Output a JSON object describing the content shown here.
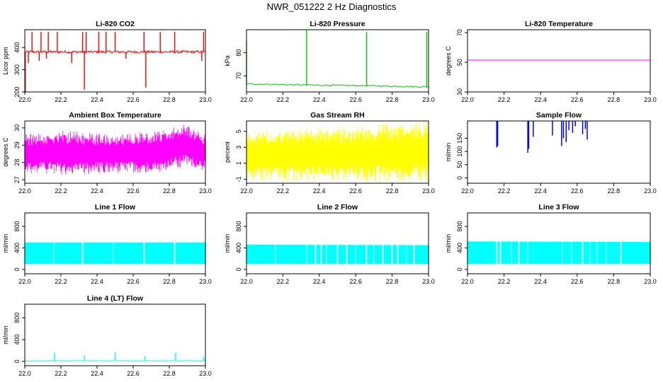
{
  "figure": {
    "title": "NWR_051222  2 Hz Diagnostics"
  },
  "chart_data": [
    {
      "type": "line",
      "title": "Li-820 CO2",
      "ylabel": "Licor ppm",
      "color": "#ff0000",
      "xlim": [
        22.0,
        23.0
      ],
      "ylim": [
        200,
        480
      ],
      "xticks": [
        22.0,
        22.2,
        22.4,
        22.6,
        22.8,
        23.0
      ],
      "yticks": [
        200,
        300,
        400
      ],
      "baseline": 380,
      "noise": 6,
      "spikes": [
        {
          "x": 22.04,
          "y": 470
        },
        {
          "x": 22.09,
          "y": 470
        },
        {
          "x": 22.13,
          "y": 470
        },
        {
          "x": 22.18,
          "y": 470
        },
        {
          "x": 22.32,
          "y": 470
        },
        {
          "x": 22.34,
          "y": 470
        },
        {
          "x": 22.41,
          "y": 470
        },
        {
          "x": 22.45,
          "y": 470
        },
        {
          "x": 22.5,
          "y": 470
        },
        {
          "x": 22.66,
          "y": 470
        },
        {
          "x": 22.75,
          "y": 470
        },
        {
          "x": 22.83,
          "y": 470
        },
        {
          "x": 22.99,
          "y": 470
        },
        {
          "x": 22.003,
          "y": 200
        },
        {
          "x": 22.33,
          "y": 210
        },
        {
          "x": 22.67,
          "y": 220
        },
        {
          "x": 22.02,
          "y": 330
        },
        {
          "x": 22.08,
          "y": 340
        },
        {
          "x": 22.26,
          "y": 330
        },
        {
          "x": 22.56,
          "y": 350
        },
        {
          "x": 22.98,
          "y": 340
        },
        {
          "x": 22.12,
          "y": 350
        }
      ]
    },
    {
      "type": "line",
      "title": "Li-820 Pressure",
      "ylabel": "kPa",
      "color": "#00cc00",
      "xlim": [
        22.0,
        23.0
      ],
      "ylim": [
        63,
        90
      ],
      "xticks": [
        22.0,
        22.2,
        22.4,
        22.6,
        22.8,
        23.0
      ],
      "yticks": [
        70,
        80
      ],
      "line": [
        [
          22.0,
          66.5
        ],
        [
          22.33,
          66.0
        ],
        [
          22.66,
          65.7
        ],
        [
          22.99,
          65.2
        ]
      ],
      "noise": 0.3,
      "spikes": [
        {
          "x": 22.0,
          "y": 85
        },
        {
          "x": 22.33,
          "y": 90
        },
        {
          "x": 22.66,
          "y": 89
        },
        {
          "x": 22.99,
          "y": 89
        }
      ]
    },
    {
      "type": "line",
      "title": "Li-820 Temperature",
      "ylabel": "degrees C",
      "color": "#ff00ff",
      "xlim": [
        22.0,
        23.0
      ],
      "ylim": [
        30,
        72
      ],
      "xticks": [
        22.0,
        22.2,
        22.4,
        22.6,
        22.8,
        23.0
      ],
      "yticks": [
        30,
        50,
        70
      ],
      "line": [
        [
          22.0,
          51.5
        ],
        [
          23.0,
          51.5
        ]
      ],
      "noise": 0
    },
    {
      "type": "line",
      "title": "Ambient Box Temperature",
      "ylabel": "degrees C",
      "color": "#ff00ff",
      "xlim": [
        22.0,
        23.0
      ],
      "ylim": [
        26.8,
        30.4
      ],
      "xticks": [
        22.0,
        22.2,
        22.4,
        22.6,
        22.8,
        23.0
      ],
      "yticks": [
        27.0,
        28.0,
        29.0,
        30.0
      ],
      "band": [
        [
          22.0,
          27.6,
          29.4
        ],
        [
          22.2,
          27.5,
          29.6
        ],
        [
          22.5,
          27.6,
          29.4
        ],
        [
          22.75,
          27.6,
          29.6
        ],
        [
          22.88,
          28.0,
          30.0
        ],
        [
          23.0,
          27.7,
          29.4
        ]
      ]
    },
    {
      "type": "line",
      "title": "Gas Stream RH",
      "ylabel": "percent",
      "color": "#ffff00",
      "xlim": [
        22.0,
        23.0
      ],
      "ylim": [
        -1.5,
        6.3
      ],
      "xticks": [
        22.0,
        22.2,
        22.4,
        22.6,
        22.8,
        23.0
      ],
      "yticks": [
        -1,
        1,
        3,
        5
      ],
      "band": [
        [
          22.0,
          -0.6,
          4.2
        ],
        [
          22.2,
          -0.7,
          4.8
        ],
        [
          22.5,
          -0.6,
          4.8
        ],
        [
          22.8,
          -0.8,
          5.4
        ],
        [
          23.0,
          -0.5,
          5.6
        ]
      ]
    },
    {
      "type": "line",
      "title": "Sample Flow",
      "ylabel": "ml/min",
      "color": "#0000ff",
      "xlim": [
        22.0,
        23.0
      ],
      "ylim": [
        -20,
        215
      ],
      "xticks": [
        22.0,
        22.2,
        22.4,
        22.6,
        22.8,
        23.0
      ],
      "yticks": [
        0,
        50,
        100,
        150
      ],
      "segments": [
        {
          "x": 22.16,
          "y1": 215,
          "y2": 115
        },
        {
          "x": 22.165,
          "y1": 215,
          "y2": 120
        },
        {
          "x": 22.33,
          "y1": 215,
          "y2": 95
        },
        {
          "x": 22.335,
          "y1": 215,
          "y2": 110
        },
        {
          "x": 22.36,
          "y1": 215,
          "y2": 155
        },
        {
          "x": 22.465,
          "y1": 215,
          "y2": 160
        },
        {
          "x": 22.515,
          "y1": 215,
          "y2": 120
        },
        {
          "x": 22.525,
          "y1": 215,
          "y2": 150
        },
        {
          "x": 22.54,
          "y1": 215,
          "y2": 135
        },
        {
          "x": 22.555,
          "y1": 215,
          "y2": 180
        },
        {
          "x": 22.575,
          "y1": 215,
          "y2": 170
        },
        {
          "x": 22.59,
          "y1": 215,
          "y2": 195
        },
        {
          "x": 22.63,
          "y1": 215,
          "y2": 165
        },
        {
          "x": 22.645,
          "y1": 215,
          "y2": 185
        },
        {
          "x": 22.655,
          "y1": 215,
          "y2": 145
        }
      ]
    },
    {
      "type": "line",
      "title": "Line 1 Flow",
      "ylabel": "ml/min",
      "color": "#00ffff",
      "xlim": [
        22.0,
        23.0
      ],
      "ylim": [
        -80,
        1050
      ],
      "xticks": [
        22.0,
        22.2,
        22.4,
        22.6,
        22.8,
        23.0
      ],
      "yticks": [
        0,
        400,
        800
      ],
      "band": [
        [
          22.0,
          100,
          500
        ],
        [
          23.0,
          100,
          500
        ]
      ],
      "gaps": [
        22.16,
        22.32,
        22.49,
        22.66,
        22.83
      ]
    },
    {
      "type": "line",
      "title": "Line 2 Flow",
      "ylabel": "ml/min",
      "color": "#00ffff",
      "xlim": [
        22.0,
        23.0
      ],
      "ylim": [
        -80,
        1050
      ],
      "xticks": [
        22.0,
        22.2,
        22.4,
        22.6,
        22.8,
        23.0
      ],
      "yticks": [
        0,
        400,
        800
      ],
      "band": [
        [
          22.0,
          100,
          460
        ],
        [
          23.0,
          100,
          450
        ]
      ],
      "gaps": [
        22.16,
        22.33,
        22.38,
        22.41,
        22.44,
        22.5,
        22.55,
        22.6,
        22.66,
        22.7,
        22.75,
        22.8,
        22.83,
        22.88,
        22.92
      ]
    },
    {
      "type": "line",
      "title": "Line 3 Flow",
      "ylabel": "ml/min",
      "color": "#00ffff",
      "xlim": [
        22.0,
        23.0
      ],
      "ylim": [
        -80,
        1050
      ],
      "xticks": [
        22.0,
        22.2,
        22.4,
        22.6,
        22.8,
        23.0
      ],
      "yticks": [
        0,
        400,
        800
      ],
      "band": [
        [
          22.0,
          100,
          520
        ],
        [
          23.0,
          100,
          510
        ]
      ],
      "gaps": [
        22.16,
        22.18,
        22.24,
        22.28,
        22.33,
        22.52,
        22.57,
        22.63,
        22.67,
        22.71,
        22.76,
        22.84
      ]
    },
    {
      "type": "line",
      "title": "Line 4 (LT) Flow",
      "ylabel": "ml/min",
      "color": "#00ffff",
      "xlim": [
        22.0,
        23.0
      ],
      "ylim": [
        -80,
        1050
      ],
      "xticks": [
        22.0,
        22.2,
        22.4,
        22.6,
        22.8,
        23.0
      ],
      "yticks": [
        0,
        400,
        800
      ],
      "line": [
        [
          22.0,
          10
        ],
        [
          23.0,
          10
        ]
      ],
      "noise": 3,
      "spikes": [
        {
          "x": 22.165,
          "y": 160
        },
        {
          "x": 22.33,
          "y": 110
        },
        {
          "x": 22.5,
          "y": 165
        },
        {
          "x": 22.665,
          "y": 100
        },
        {
          "x": 22.835,
          "y": 160
        },
        {
          "x": 22.99,
          "y": 90
        }
      ]
    }
  ]
}
